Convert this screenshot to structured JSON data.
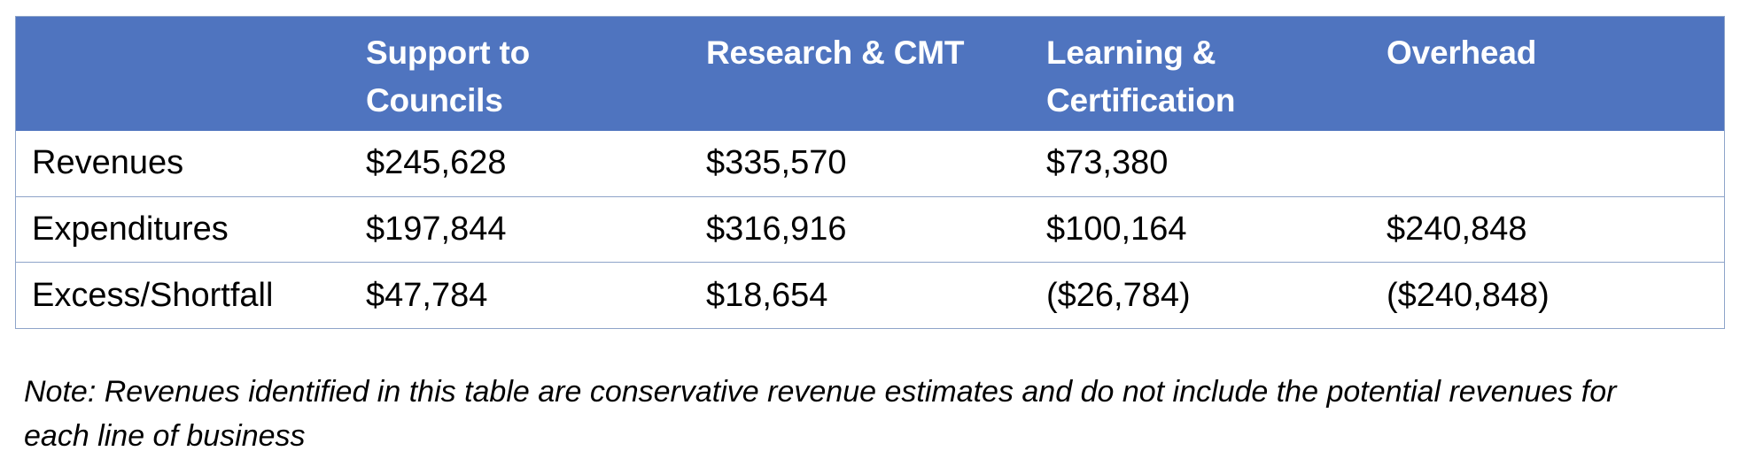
{
  "table": {
    "headers": [
      "",
      "Support to\nCouncils",
      "Research & CMT",
      "Learning &\nCertification",
      "Overhead"
    ],
    "header_lines": [
      [],
      [
        "Support to",
        "Councils"
      ],
      [
        "Research & CMT"
      ],
      [
        "Learning &",
        "Certification"
      ],
      [
        "Overhead"
      ]
    ],
    "rows": [
      {
        "label": "Revenues",
        "cells": [
          "$245,628",
          "$335,570",
          "$73,380",
          ""
        ]
      },
      {
        "label": "Expenditures",
        "cells": [
          "$197,844",
          "$316,916",
          "$100,164",
          "$240,848"
        ]
      },
      {
        "label": "Excess/Shortfall",
        "cells": [
          "$47,784",
          "$18,654",
          "($26,784)",
          "($240,848)"
        ]
      }
    ]
  },
  "note": "Note: Revenues identified in this table are conservative revenue estimates and do not include the potential revenues for each line of business",
  "colors": {
    "header_background": "#4f74bf",
    "header_text": "#ffffff",
    "border": "#8ea4c9"
  }
}
